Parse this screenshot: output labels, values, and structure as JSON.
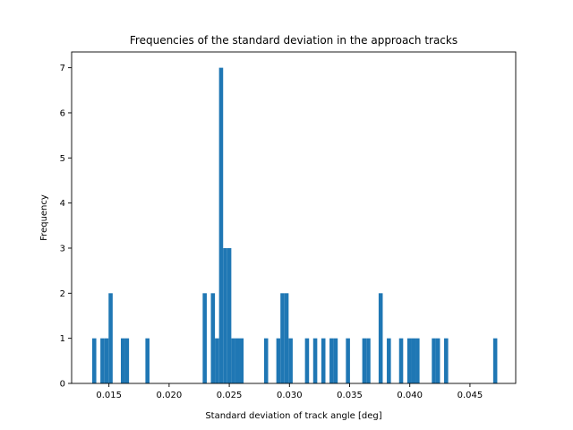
{
  "chart_data": {
    "type": "bar",
    "title": "Frequencies of the standard deviation in the approach tracks",
    "xlabel": "Standard deviation of track angle [deg]",
    "ylabel": "Frequency",
    "xlim": [
      0.0119,
      0.0488
    ],
    "ylim": [
      0,
      7.35
    ],
    "xticks": [
      "0.015",
      "0.020",
      "0.025",
      "0.030",
      "0.035",
      "0.040",
      "0.045"
    ],
    "xtick_values": [
      0.015,
      0.02,
      0.025,
      0.03,
      0.035,
      0.04,
      0.045
    ],
    "yticks": [
      "0",
      "1",
      "2",
      "3",
      "4",
      "5",
      "6",
      "7"
    ],
    "ytick_values": [
      0,
      1,
      2,
      3,
      4,
      5,
      6,
      7
    ],
    "bar_color": "#1f77b4",
    "bin_width": 0.00034,
    "bins": [
      {
        "x": 0.01361,
        "value": 1
      },
      {
        "x": 0.01429,
        "value": 1
      },
      {
        "x": 0.01463,
        "value": 1
      },
      {
        "x": 0.01497,
        "value": 2
      },
      {
        "x": 0.01599,
        "value": 1
      },
      {
        "x": 0.01633,
        "value": 1
      },
      {
        "x": 0.01803,
        "value": 1
      },
      {
        "x": 0.02279,
        "value": 2
      },
      {
        "x": 0.02347,
        "value": 2
      },
      {
        "x": 0.02381,
        "value": 1
      },
      {
        "x": 0.02415,
        "value": 7
      },
      {
        "x": 0.02449,
        "value": 3
      },
      {
        "x": 0.02483,
        "value": 3
      },
      {
        "x": 0.02517,
        "value": 1
      },
      {
        "x": 0.02551,
        "value": 1
      },
      {
        "x": 0.02585,
        "value": 1
      },
      {
        "x": 0.02789,
        "value": 1
      },
      {
        "x": 0.02891,
        "value": 1
      },
      {
        "x": 0.02925,
        "value": 2
      },
      {
        "x": 0.02959,
        "value": 2
      },
      {
        "x": 0.02993,
        "value": 1
      },
      {
        "x": 0.03129,
        "value": 1
      },
      {
        "x": 0.03197,
        "value": 1
      },
      {
        "x": 0.03265,
        "value": 1
      },
      {
        "x": 0.03333,
        "value": 1
      },
      {
        "x": 0.03367,
        "value": 1
      },
      {
        "x": 0.03469,
        "value": 1
      },
      {
        "x": 0.03605,
        "value": 1
      },
      {
        "x": 0.03639,
        "value": 1
      },
      {
        "x": 0.03741,
        "value": 2
      },
      {
        "x": 0.03809,
        "value": 1
      },
      {
        "x": 0.03911,
        "value": 1
      },
      {
        "x": 0.03979,
        "value": 1
      },
      {
        "x": 0.04013,
        "value": 1
      },
      {
        "x": 0.04047,
        "value": 1
      },
      {
        "x": 0.04183,
        "value": 1
      },
      {
        "x": 0.04217,
        "value": 1
      },
      {
        "x": 0.04285,
        "value": 1
      },
      {
        "x": 0.04693,
        "value": 1
      }
    ]
  }
}
